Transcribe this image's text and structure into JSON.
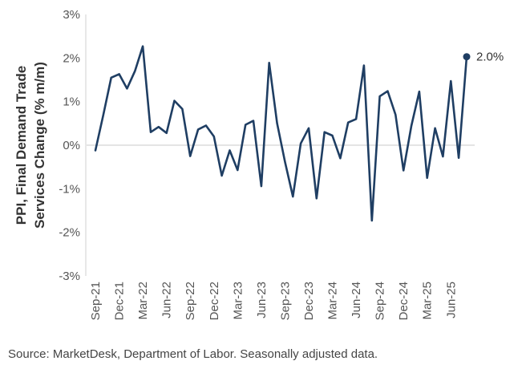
{
  "chart_data": {
    "type": "line",
    "title": "",
    "xlabel": "",
    "ylabel_lines": [
      "PPI, Final Demand Trade",
      "Services Change (% m/m)"
    ],
    "ylim": [
      -3,
      3
    ],
    "yticks": [
      -3,
      -2,
      -1,
      0,
      1,
      2,
      3
    ],
    "ytick_labels": [
      "-3%",
      "-2%",
      "-1%",
      "0%",
      "1%",
      "2%",
      "3%"
    ],
    "xtick_labels": [
      "Sep-21",
      "Dec-21",
      "Mar-22",
      "Jun-22",
      "Sep-22",
      "Dec-22",
      "Mar-23",
      "Jun-23",
      "Sep-23",
      "Dec-23",
      "Mar-24",
      "Jun-24",
      "Sep-24",
      "Dec-24",
      "Mar-25",
      "Jun-25"
    ],
    "xtick_every": 3,
    "end_label": "2.0%",
    "line_color": "#1f3e63",
    "series": [
      {
        "name": "PPI Final Demand Trade Services",
        "values": [
          -0.12,
          0.7,
          1.55,
          1.63,
          1.3,
          1.7,
          2.27,
          0.3,
          0.42,
          0.28,
          1.02,
          0.83,
          -0.25,
          0.36,
          0.45,
          0.2,
          -0.7,
          -0.12,
          -0.57,
          0.47,
          0.56,
          -0.94,
          1.89,
          0.5,
          -0.38,
          -1.18,
          0.04,
          0.39,
          -1.22,
          0.3,
          0.22,
          -0.3,
          0.52,
          0.6,
          1.83,
          -1.73,
          1.12,
          1.24,
          0.7,
          -0.58,
          0.44,
          1.23,
          -0.75,
          0.39,
          -0.26,
          1.47,
          -0.29,
          2.03
        ]
      }
    ]
  },
  "source": "Source: MarketDesk, Department of Labor. Seasonally adjusted data."
}
